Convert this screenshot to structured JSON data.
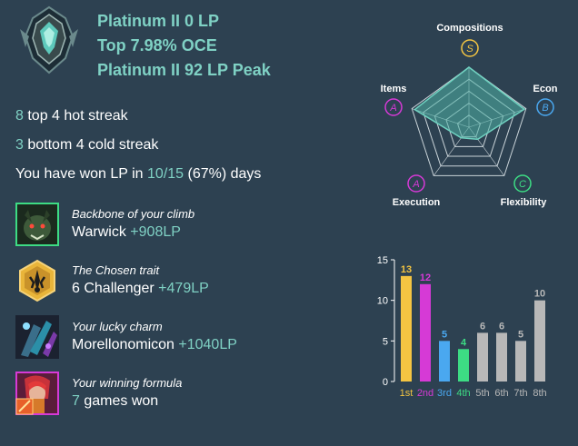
{
  "rank": {
    "current": "Platinum II 0 LP",
    "top": "Top 7.98% OCE",
    "peak": "Platinum II 92 LP Peak"
  },
  "streaks": {
    "hot_count": "8",
    "hot_text": " top 4 hot streak",
    "cold_count": "3",
    "cold_text": " bottom 4 cold streak",
    "won_prefix": "You have won LP in ",
    "won_ratio": "10/15",
    "won_suffix": " (67%) days"
  },
  "cards": [
    {
      "subtitle": "Backbone of your climb",
      "name": "Warwick ",
      "value": "+908LP",
      "icon": "warwick-portrait-icon",
      "border": "#3ddc84"
    },
    {
      "subtitle": "The Chosen trait",
      "name": "6 Challenger ",
      "value": "+479LP",
      "icon": "challenger-trait-icon"
    },
    {
      "subtitle": "Your lucky charm",
      "name": "Morellonomicon ",
      "value": "+1040LP",
      "icon": "morellonomicon-item-icon"
    },
    {
      "subtitle": "Your winning formula",
      "name": "games won",
      "value": "7",
      "icon": "composition-portrait-icon",
      "border": "#d63ad6"
    }
  ],
  "radar": {
    "axes": [
      {
        "label": "Compositions",
        "grade": "S",
        "color": "#f4c542",
        "value": 1.0
      },
      {
        "label": "Econ",
        "grade": "B",
        "color": "#4aa8f0",
        "value": 0.97
      },
      {
        "label": "Flexibility",
        "grade": "C",
        "color": "#3ddc84",
        "value": 0.25
      },
      {
        "label": "Execution",
        "grade": "A",
        "color": "#d63ad6",
        "value": 0.22
      },
      {
        "label": "Items",
        "grade": "A",
        "color": "#d63ad6",
        "value": 0.95
      }
    ],
    "fill_color": "#4fb3a6"
  },
  "chart_data": {
    "type": "bar",
    "categories": [
      "1st",
      "2nd",
      "3rd",
      "4th",
      "5th",
      "6th",
      "7th",
      "8th"
    ],
    "values": [
      13,
      12,
      5,
      4,
      6,
      6,
      5,
      10
    ],
    "colors": [
      "#f4c542",
      "#d63ad6",
      "#4aa8f0",
      "#3ddc84",
      "#b8b8b8",
      "#b8b8b8",
      "#b8b8b8",
      "#b8b8b8"
    ],
    "yticks": [
      "0",
      "5",
      "10",
      "15"
    ],
    "ylim": [
      0,
      15
    ],
    "grid": false
  }
}
